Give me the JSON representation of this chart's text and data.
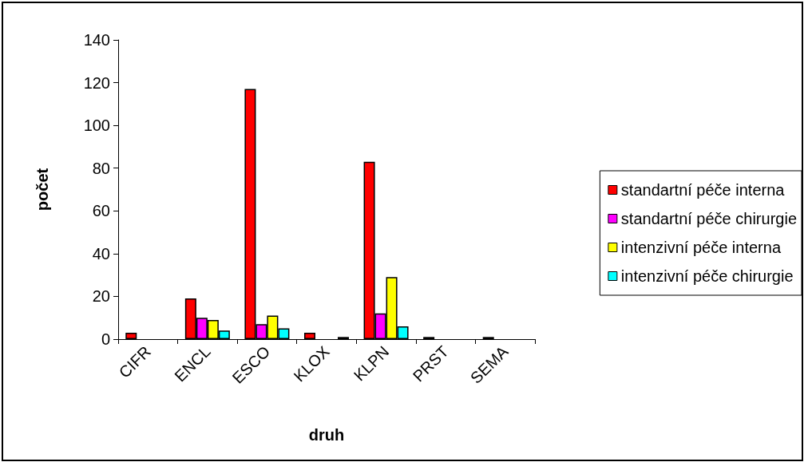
{
  "chart_data": {
    "type": "bar",
    "xlabel": "druh",
    "ylabel": "počet",
    "categories": [
      "CIFR",
      "ENCL",
      "ESCO",
      "KLOX",
      "KLPN",
      "PRST",
      "SEMA"
    ],
    "series": [
      {
        "name": "standartní péče interna",
        "color": "#ff0000",
        "values": [
          3,
          19,
          117,
          3,
          83,
          1,
          1
        ]
      },
      {
        "name": "standartní péče chirurgie",
        "color": "#ff00ff",
        "values": [
          null,
          10,
          7,
          null,
          12,
          null,
          null
        ]
      },
      {
        "name": "intenzivní péče interna",
        "color": "#ffff00",
        "values": [
          null,
          9,
          11,
          null,
          29,
          null,
          null
        ]
      },
      {
        "name": "intenzivní péče chirurgie",
        "color": "#00ffff",
        "values": [
          null,
          4,
          5,
          1,
          6,
          null,
          null
        ]
      }
    ],
    "ylim": [
      0,
      140
    ],
    "yticks": [
      0,
      20,
      40,
      60,
      80,
      100,
      120,
      140
    ],
    "grid": false,
    "legend": "right"
  }
}
